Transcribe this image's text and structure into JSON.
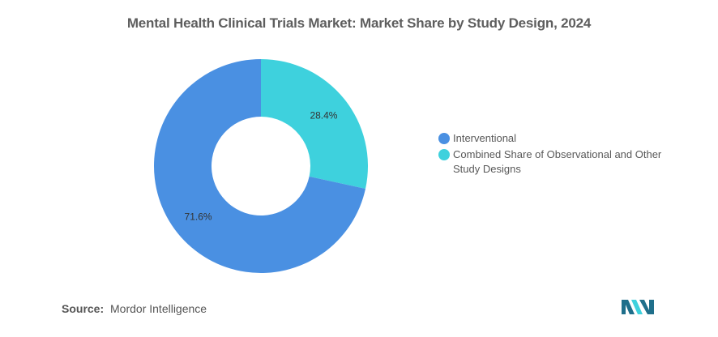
{
  "title": "Mental Health Clinical Trials Market: Market Share by Study Design, 2024",
  "chart_data": {
    "type": "pie",
    "variant": "donut",
    "title": "Mental Health Clinical Trials Market: Market Share by Study Design, 2024",
    "series": [
      {
        "name": "Interventional",
        "value": 71.6,
        "label": "71.6%",
        "color": "#4a90e2"
      },
      {
        "name": "Combined Share of Observational and Other Study Designs",
        "value": 28.4,
        "label": "28.4%",
        "color": "#3ed1dd"
      }
    ],
    "legend_position": "right"
  },
  "source": {
    "label": "Source:",
    "text": "Mordor Intelligence"
  },
  "logo": {
    "icon": "mordor-intelligence-logo-icon",
    "color_dark": "#1f6f8b",
    "color_light": "#3ed1dd"
  }
}
